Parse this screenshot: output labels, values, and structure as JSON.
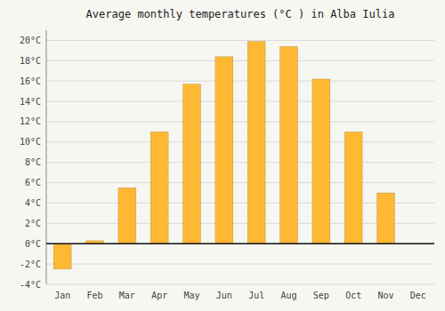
{
  "chart_data": {
    "type": "bar",
    "title": "Average monthly temperatures (°C ) in Alba Iulia",
    "categories": [
      "Jan",
      "Feb",
      "Mar",
      "Apr",
      "May",
      "Jun",
      "Jul",
      "Aug",
      "Sep",
      "Oct",
      "Nov",
      "Dec"
    ],
    "values": [
      -2.5,
      0.3,
      5.5,
      11.0,
      15.7,
      18.4,
      19.9,
      19.4,
      16.2,
      11.0,
      5.0,
      0.0
    ],
    "color": "#FFB833",
    "ylim": [
      -4,
      21
    ],
    "yticks": [
      {
        "value": -4,
        "label": "-4°C"
      },
      {
        "value": -2,
        "label": "-2°C"
      },
      {
        "value": 0,
        "label": "0°C"
      },
      {
        "value": 2,
        "label": "2°C"
      },
      {
        "value": 4,
        "label": "4°C"
      },
      {
        "value": 6,
        "label": "6°C"
      },
      {
        "value": 8,
        "label": "8°C"
      },
      {
        "value": 10,
        "label": "10°C"
      },
      {
        "value": 12,
        "label": "12°C"
      },
      {
        "value": 14,
        "label": "14°C"
      },
      {
        "value": 16,
        "label": "16°C"
      },
      {
        "value": 18,
        "label": "18°C"
      },
      {
        "value": 20,
        "label": "20°C"
      }
    ],
    "grid": true
  }
}
